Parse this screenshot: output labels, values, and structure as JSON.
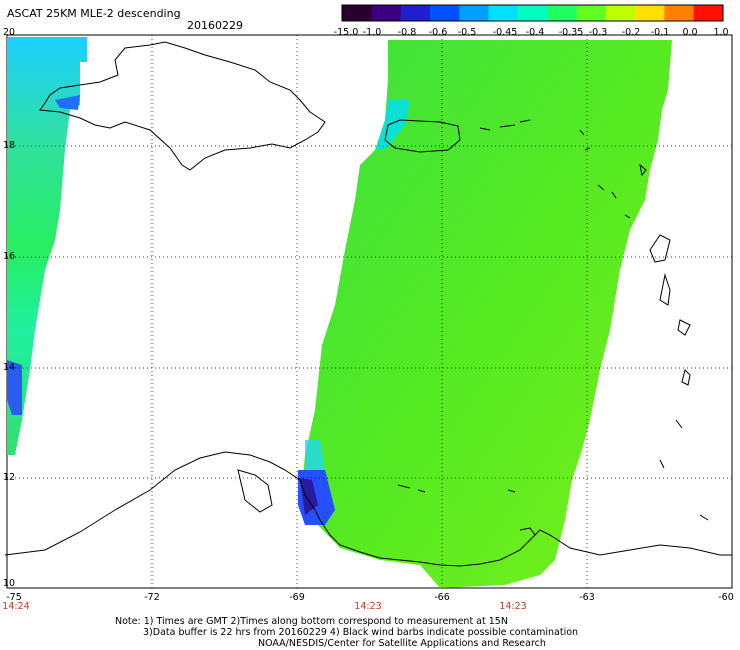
{
  "header": {
    "title": "ASCAT 25KM MLE-2 descending",
    "date": "20160229"
  },
  "colorbar": {
    "labels": [
      "-15.0",
      "-1.0",
      "-0.8",
      "-0.6",
      "-0.5",
      "-0.45",
      "-0.4",
      "-0.35",
      "-0.3",
      "-0.2",
      "-0.1",
      "0.0",
      "1.0"
    ],
    "colors": [
      "#2a0030",
      "#3a0080",
      "#2020d0",
      "#0050ff",
      "#00a0ff",
      "#00e0ff",
      "#00ffc0",
      "#20ff60",
      "#60ff20",
      "#c0ff00",
      "#ffe000",
      "#ff8000",
      "#ff1000"
    ]
  },
  "map": {
    "latitudes": [
      "20",
      "18",
      "16",
      "14",
      "12",
      "10"
    ],
    "longitudes": [
      "-75",
      "-72",
      "-69",
      "-66",
      "-63",
      "-60"
    ],
    "times": [
      "14:24",
      "14:23",
      "14:23"
    ],
    "swath_color": "#44e030",
    "land_outline_color": "#000000"
  },
  "notes": {
    "line1": "Note: 1) Times are GMT 2)Times along bottom correspond to measurement at 15N",
    "line2": "3)Data buffer is 22 hrs from 20160229 4) Black wind barbs indicate possible contamination",
    "line3": "NOAA/NESDIS/Center for Satellite Applications and Research"
  }
}
